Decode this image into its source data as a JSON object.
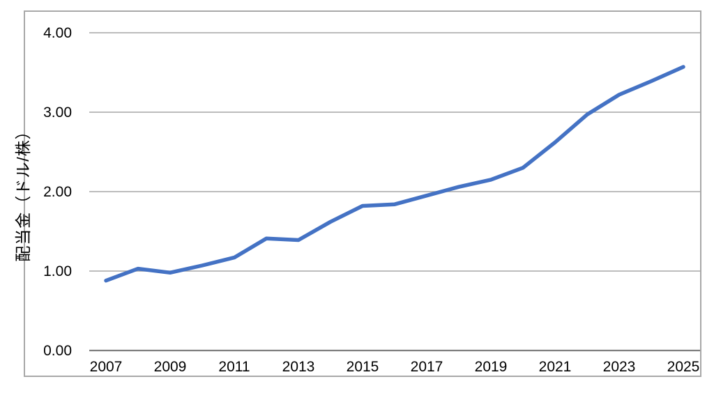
{
  "chart_data": {
    "type": "line",
    "title": "",
    "xlabel": "",
    "ylabel": "配当金（ドル/株）",
    "years": [
      2007,
      2008,
      2009,
      2010,
      2011,
      2012,
      2013,
      2014,
      2015,
      2016,
      2017,
      2018,
      2019,
      2020,
      2021,
      2022,
      2023,
      2024,
      2025
    ],
    "series": [
      {
        "name": "配当金",
        "color": "#4472C4",
        "values": [
          0.88,
          1.03,
          0.98,
          1.07,
          1.17,
          1.41,
          1.39,
          1.62,
          1.82,
          1.84,
          1.95,
          2.06,
          2.15,
          2.3,
          2.62,
          2.97,
          3.22,
          3.39,
          3.57
        ]
      }
    ],
    "ylim": [
      0,
      4
    ],
    "y_tick_step": 1.0,
    "y_ticks": [
      "0.00",
      "1.00",
      "2.00",
      "3.00",
      "4.00"
    ],
    "x_tick_labels": [
      "2007",
      "2009",
      "2011",
      "2013",
      "2015",
      "2017",
      "2019",
      "2021",
      "2023",
      "2025"
    ],
    "grid": true,
    "legend_position": "none",
    "colors": {
      "line": "#4472C4",
      "gridline": "#A6A6A6",
      "axis_line": "#7F7F7F",
      "border": "#A8A8A8",
      "tick_text": "#000000",
      "background": "#ffffff"
    }
  }
}
